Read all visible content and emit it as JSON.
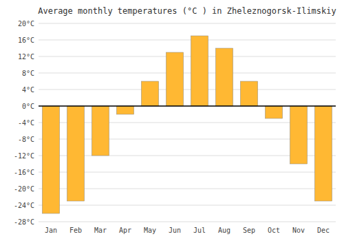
{
  "chart_data": {
    "type": "bar",
    "title": "Average monthly temperatures (°C ) in Zheleznogorsk-Ilimskiy",
    "categories": [
      "Jan",
      "Feb",
      "Mar",
      "Apr",
      "May",
      "Jun",
      "Jul",
      "Aug",
      "Sep",
      "Oct",
      "Nov",
      "Dec"
    ],
    "values": [
      -26,
      -23,
      -12,
      -2,
      6,
      13,
      17,
      14,
      6,
      -3,
      -14,
      -23
    ],
    "color": "#FFB833",
    "ylim": [
      -28,
      20
    ],
    "yticks": [
      {
        "value": -28,
        "label": "-28°C"
      },
      {
        "value": -24,
        "label": "-24°C"
      },
      {
        "value": -20,
        "label": "-20°C"
      },
      {
        "value": -16,
        "label": "-16°C"
      },
      {
        "value": -12,
        "label": "-12°C"
      },
      {
        "value": -8,
        "label": "-8°C"
      },
      {
        "value": -4,
        "label": "-4°C"
      },
      {
        "value": 0,
        "label": "0°C"
      },
      {
        "value": 4,
        "label": "4°C"
      },
      {
        "value": 8,
        "label": "8°C"
      },
      {
        "value": 12,
        "label": "12°C"
      },
      {
        "value": 16,
        "label": "16°C"
      },
      {
        "value": 20,
        "label": "20°C"
      }
    ],
    "grid": true
  }
}
